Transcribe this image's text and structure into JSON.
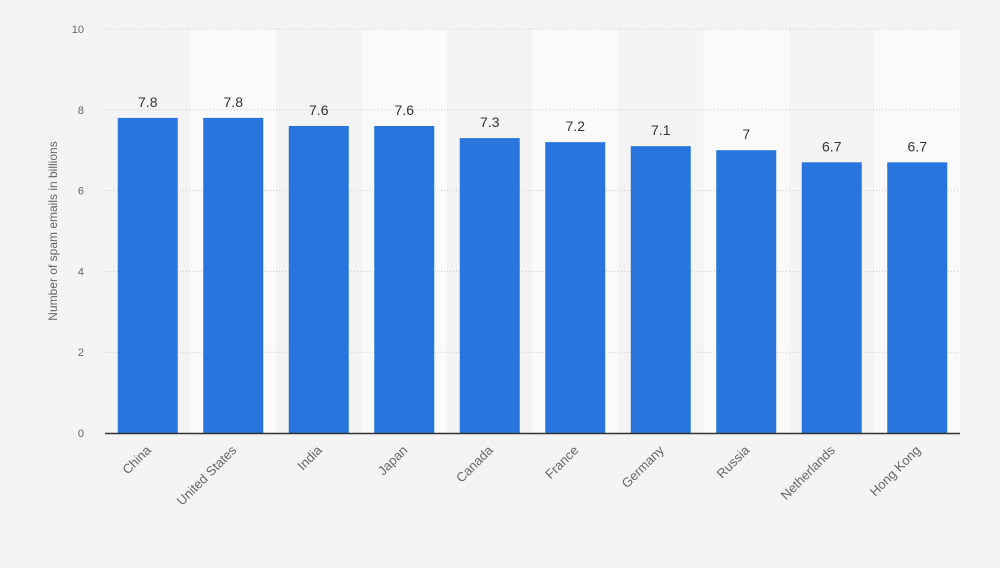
{
  "chart_data": {
    "type": "bar",
    "categories": [
      "China",
      "United States",
      "India",
      "Japan",
      "Canada",
      "France",
      "Germany",
      "Russia",
      "Netherlands",
      "Hong Kong"
    ],
    "values": [
      7.8,
      7.8,
      7.6,
      7.6,
      7.3,
      7.2,
      7.1,
      7,
      6.7,
      6.7
    ],
    "value_labels": [
      "7.8",
      "7.8",
      "7.6",
      "7.6",
      "7.3",
      "7.2",
      "7.1",
      "7",
      "6.7",
      "6.7"
    ],
    "ylabel": "Number of spam emails in billions",
    "xlabel": "",
    "ylim": [
      0,
      10
    ],
    "yticks": [
      0,
      2,
      4,
      6,
      8,
      10
    ],
    "grid": true,
    "legend": "none",
    "colors": {
      "bar": "#2876dd",
      "band": "#fafafa",
      "background": "#f4f4f4",
      "grid": "#c8c8c8",
      "axis": "#333333",
      "label": "#333333",
      "tick": "#666666"
    }
  }
}
